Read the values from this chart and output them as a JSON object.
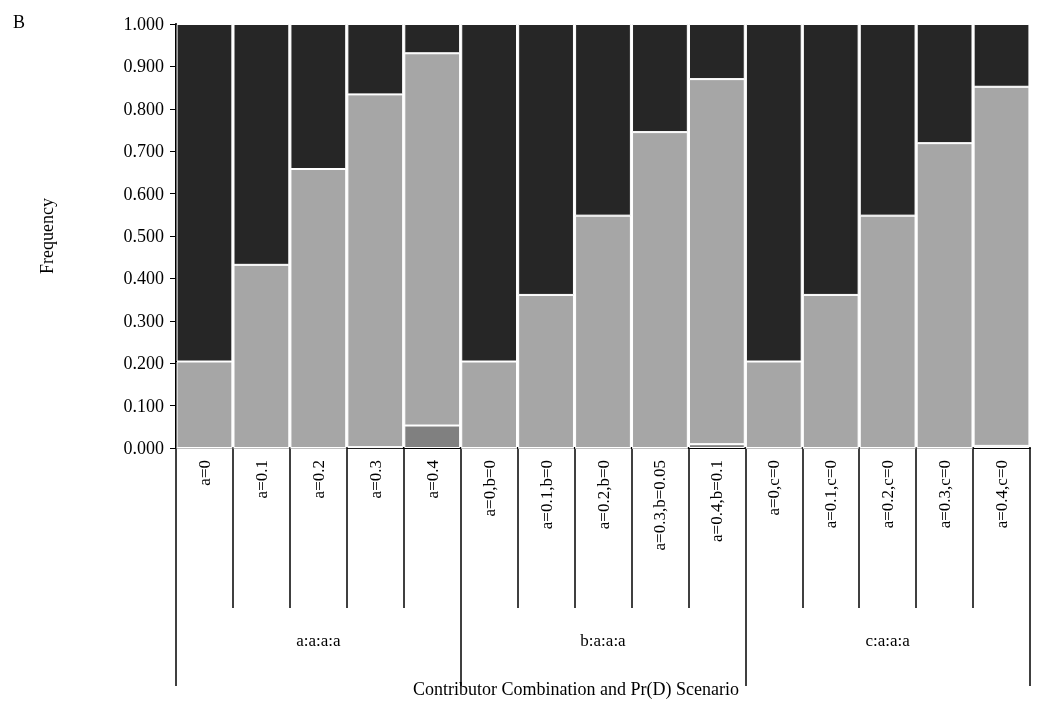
{
  "chart_data": {
    "type": "bar",
    "title": "B",
    "ylabel": "Frequency",
    "annotations": [
      "a:a:a:a",
      "b:a:a:a",
      "c:a:a:a",
      "Contributor Combination and Pr(D) Scenario"
    ],
    "categories": [
      "a=0",
      "a=0.1",
      "a=0.2",
      "a=0.3",
      "a=0.4",
      "a=0,b=0",
      "a=0.1,b=0",
      "a=0.2,b=0",
      "a=0.3,b=0.05",
      "a=0.4,b=0.1",
      "a=0,c=0",
      "a=0.1,c=0",
      "a=0.2,c=0",
      "a=0.3,c=0",
      "a=0.4,c=0"
    ],
    "stacked": true,
    "grid": false,
    "series": [
      {
        "color": "#808080",
        "values": [
          0,
          0,
          0,
          0.002,
          0.053,
          0,
          0,
          0,
          0,
          0.009,
          0,
          0,
          0,
          0,
          0.005
        ]
      },
      {
        "color": "#a6a6a6",
        "values": [
          0.204,
          0.432,
          0.658,
          0.832,
          0.878,
          0.204,
          0.361,
          0.548,
          0.745,
          0.861,
          0.204,
          0.361,
          0.548,
          0.719,
          0.847
        ]
      },
      {
        "color": "#262626",
        "values": [
          0.796,
          0.568,
          0.342,
          0.166,
          0.069,
          0.796,
          0.639,
          0.452,
          0.255,
          0.13,
          0.796,
          0.639,
          0.452,
          0.281,
          0.148
        ]
      }
    ],
    "ylim": [
      0,
      1
    ],
    "yticks": [
      {
        "value": 0,
        "label": "0.000"
      },
      {
        "value": 0.1,
        "label": "0.100"
      },
      {
        "value": 0.2,
        "label": "0.200"
      },
      {
        "value": 0.3,
        "label": "0.300"
      },
      {
        "value": 0.4,
        "label": "0.400"
      },
      {
        "value": 0.5,
        "label": "0.500"
      },
      {
        "value": 0.6,
        "label": "0.600"
      },
      {
        "value": 0.7,
        "label": "0.700"
      },
      {
        "value": 0.8,
        "label": "0.800"
      },
      {
        "value": 0.9,
        "label": "0.900"
      },
      {
        "value": 1,
        "label": "1.000"
      }
    ]
  }
}
